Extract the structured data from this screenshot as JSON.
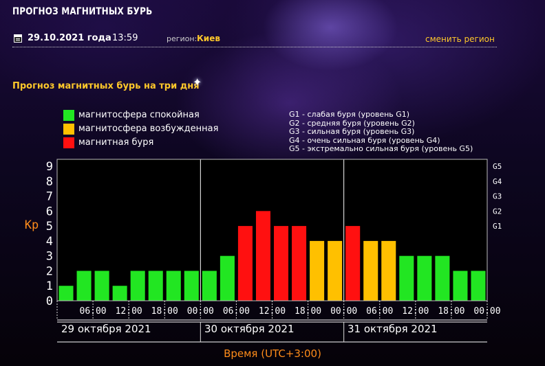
{
  "header": {
    "site_title": "ПРОГНОЗ МАГНИТНЫХ БУРЬ",
    "date": "29.10.2021 года",
    "time": "13:59",
    "region_prefix": "регион:",
    "region_value": "Киев",
    "change_region": "сменить регион"
  },
  "section_title": "Прогноз магнитных бурь на три дня",
  "legend": {
    "items": [
      {
        "label": "магнитосфера спокойная",
        "color": "#22e622"
      },
      {
        "label": "магнитосфера возбужденная",
        "color": "#ffc000"
      },
      {
        "label": "магнитная буря",
        "color": "#ff1010"
      }
    ],
    "g_levels": [
      "G1 - слабая буря (уровень G1)",
      "G2 - средняя буря (уровень G2)",
      "G3 - сильная буря (уровень G3)",
      "G4 - очень сильная буря (уровень G4)",
      "G5 - экстремально сильная буря (уровень G5)"
    ]
  },
  "chart_data": {
    "type": "bar",
    "ylabel": "Kp",
    "xlabel": "Время (UTC+3:00)",
    "ylim": [
      0,
      9
    ],
    "y_ticks": [
      "0",
      "1",
      "2",
      "3",
      "4",
      "5",
      "6",
      "7",
      "8",
      "9"
    ],
    "right_ticks": [
      {
        "label": "G1",
        "kp": 5
      },
      {
        "label": "G2",
        "kp": 6
      },
      {
        "label": "G3",
        "kp": 7
      },
      {
        "label": "G4",
        "kp": 8
      },
      {
        "label": "G5",
        "kp": 9
      }
    ],
    "x_tick_labels": [
      "06:00",
      "12:00",
      "18:00",
      "00:00",
      "06:00",
      "12:00",
      "18:00",
      "00:00",
      "06:00",
      "12:00",
      "18:00",
      "00:00"
    ],
    "days": [
      "29 октября 2021",
      "30 октября 2021",
      "31 октября 2021"
    ],
    "values": [
      1,
      2,
      2,
      1,
      2,
      2,
      2,
      2,
      2,
      3,
      5,
      6,
      5,
      5,
      4,
      4,
      5,
      4,
      4,
      3,
      3,
      3,
      2,
      2
    ],
    "colors": {
      "quiet": "#22e622",
      "active": "#ffc000",
      "storm": "#ff1010"
    },
    "grid": false
  }
}
